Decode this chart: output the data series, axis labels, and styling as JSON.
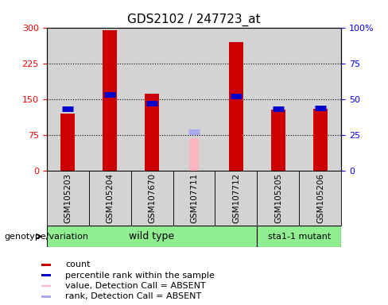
{
  "title": "GDS2102 / 247723_at",
  "samples": [
    "GSM105203",
    "GSM105204",
    "GSM107670",
    "GSM107711",
    "GSM107712",
    "GSM105205",
    "GSM105206"
  ],
  "count_values": [
    120,
    295,
    162,
    null,
    270,
    128,
    130
  ],
  "count_absent": [
    null,
    null,
    null,
    68,
    null,
    null,
    null
  ],
  "percentile_values": [
    43,
    53,
    47,
    null,
    52,
    43,
    44
  ],
  "percentile_absent": [
    null,
    null,
    null,
    27,
    null,
    null,
    null
  ],
  "ylim_left": [
    0,
    300
  ],
  "ylim_right": [
    0,
    100
  ],
  "yticks_left": [
    0,
    75,
    150,
    225,
    300
  ],
  "yticks_right": [
    0,
    25,
    50,
    75,
    100
  ],
  "bar_width": 0.35,
  "count_color": "#CC0000",
  "count_absent_color": "#FFB6C1",
  "percentile_color": "#0000CC",
  "percentile_absent_color": "#AAAAEE",
  "bg_color": "#D3D3D3",
  "wt_color": "#90EE90",
  "mut_color": "#90EE90",
  "title_fontsize": 11,
  "tick_fontsize": 8,
  "label_fontsize": 7.5,
  "group_fontsize": 9,
  "legend_fontsize": 8,
  "genotype_fontsize": 8,
  "legend_items": [
    {
      "label": "count",
      "color": "#CC0000"
    },
    {
      "label": "percentile rank within the sample",
      "color": "#0000CC"
    },
    {
      "label": "value, Detection Call = ABSENT",
      "color": "#FFB6C1"
    },
    {
      "label": "rank, Detection Call = ABSENT",
      "color": "#AAAAEE"
    }
  ],
  "wt_samples": [
    0,
    1,
    2,
    3,
    4
  ],
  "mut_samples": [
    5,
    6
  ]
}
